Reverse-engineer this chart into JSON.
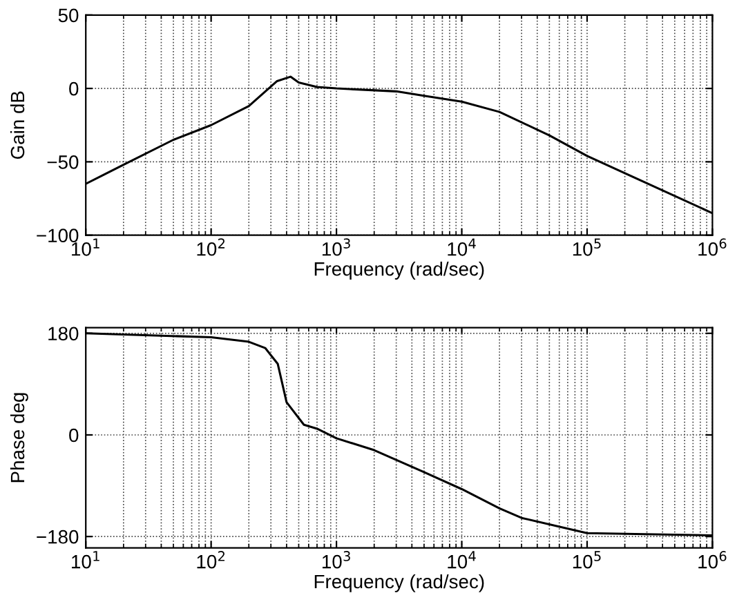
{
  "chart_data": [
    {
      "type": "line",
      "xlabel": "Frequency (rad/sec)",
      "ylabel": "Gain dB",
      "log": "x",
      "grid": true,
      "marker": "none",
      "line_style": "solid",
      "xlim": [
        10,
        1000000
      ],
      "xticks": [
        {
          "value": 10,
          "label": "10$^{1}$"
        },
        {
          "value": 100,
          "label": "10$^{2}$"
        },
        {
          "value": 1000,
          "label": "10$^{3}$"
        },
        {
          "value": 10000,
          "label": "10$^{4}$"
        },
        {
          "value": 100000,
          "label": "10$^{5}$"
        },
        {
          "value": 1000000,
          "label": "10$^{6}$"
        }
      ],
      "ylim": [
        -100,
        50
      ],
      "yticks": [
        {
          "value": -100,
          "label": "−100"
        },
        {
          "value": -50,
          "label": "−50"
        },
        0,
        50
      ],
      "series": [
        {
          "color": "#000000",
          "x": [
            10,
            20,
            50,
            100,
            200,
            336,
            430,
            500,
            700,
            1000,
            3000,
            5000,
            10000,
            20000,
            50000,
            100000,
            1000000
          ],
          "values": [
            -65,
            -52,
            -35,
            -25,
            -12,
            5,
            8,
            4,
            1,
            0,
            -2,
            -5,
            -9,
            -16,
            -32,
            -46,
            -85
          ]
        }
      ]
    },
    {
      "type": "line",
      "xlabel": "Frequency (rad/sec)",
      "ylabel": "Phase deg",
      "log": "x",
      "grid": true,
      "marker": "none",
      "line_style": "solid",
      "xlim": [
        10,
        1000000
      ],
      "xticks": [
        {
          "value": 10,
          "label": "10$^{1}$"
        },
        {
          "value": 100,
          "label": "10$^{2}$"
        },
        {
          "value": 1000,
          "label": "10$^{3}$"
        },
        {
          "value": 10000,
          "label": "10$^{4}$"
        },
        {
          "value": 100000,
          "label": "10$^{5}$"
        },
        {
          "value": 1000000,
          "label": "10$^{6}$"
        }
      ],
      "ylim": [
        -200,
        190
      ],
      "yticks": [
        {
          "value": -180,
          "label": "−180"
        },
        0,
        180
      ],
      "series": [
        {
          "color": "#000000",
          "x": [
            10,
            100,
            200,
            270,
            340,
            400,
            550,
            700,
            1000,
            2000,
            5000,
            10000,
            20000,
            30000,
            100000,
            1000000
          ],
          "values": [
            180,
            173,
            165,
            154,
            126,
            58,
            18,
            11,
            -6,
            -27,
            -66,
            -96,
            -130,
            -147,
            -174,
            -178
          ]
        }
      ]
    }
  ]
}
